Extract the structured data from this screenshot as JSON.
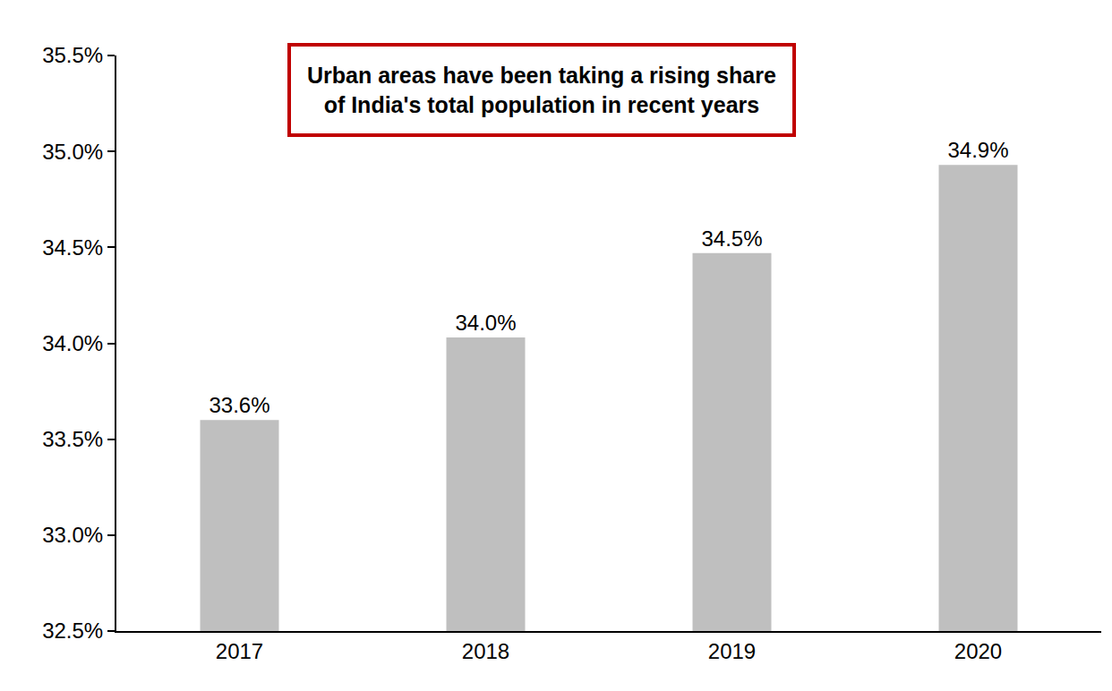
{
  "chart_data": {
    "type": "bar",
    "title": "Urban areas have been taking a rising share\nof India's total population in recent years",
    "categories": [
      "2017",
      "2018",
      "2019",
      "2020"
    ],
    "values": [
      33.6,
      34.03,
      34.47,
      34.93
    ],
    "value_labels": [
      "33.6%",
      "34.0%",
      "34.5%",
      "34.9%"
    ],
    "data_labels": true,
    "color": "#bfbfbf",
    "ylim": [
      32.5,
      35.5
    ],
    "yticks": [
      {
        "value": 32.5,
        "label": "32.5%"
      },
      {
        "value": 33.0,
        "label": "33.0%"
      },
      {
        "value": 33.5,
        "label": "33.5%"
      },
      {
        "value": 34.0,
        "label": "34.0%"
      },
      {
        "value": 34.5,
        "label": "34.5%"
      },
      {
        "value": 35.0,
        "label": "35.0%"
      },
      {
        "value": 35.5,
        "label": "35.5%"
      }
    ],
    "grid": false
  }
}
